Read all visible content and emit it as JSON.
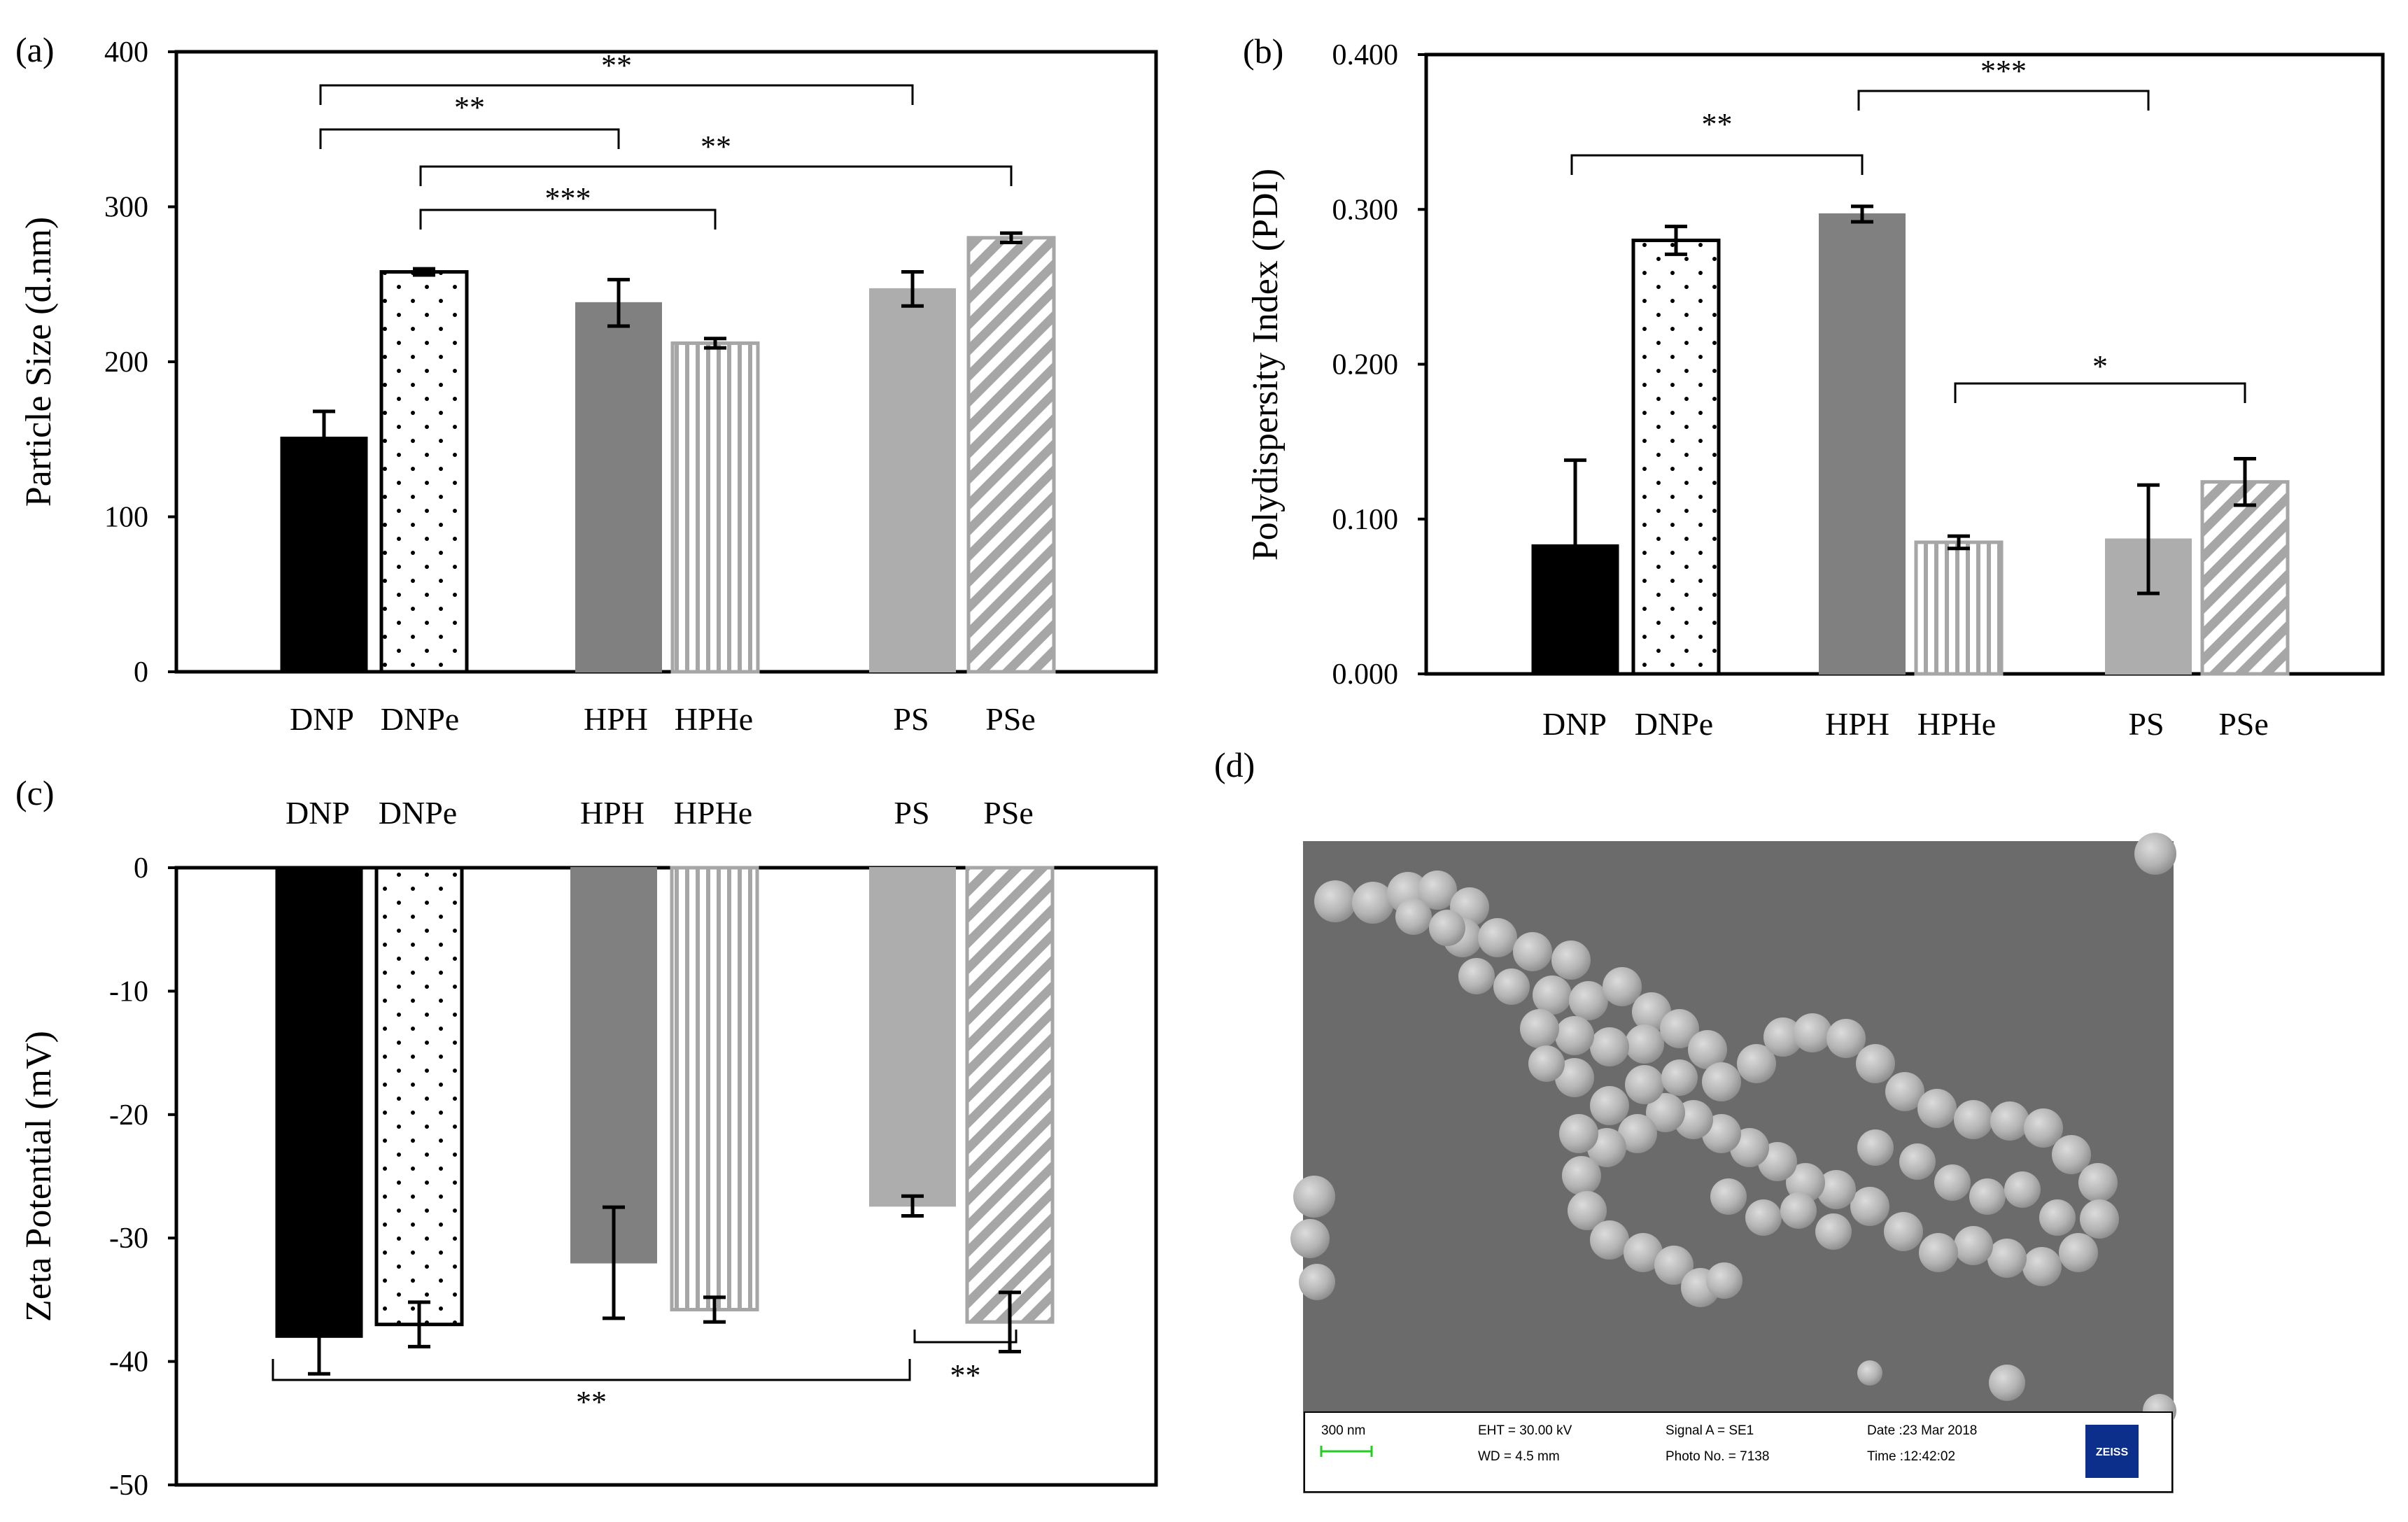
{
  "colors": {
    "black": "#000000",
    "dark_gray": "#808080",
    "light_gray": "#adadad",
    "hatch_gray": "#a6a6a6",
    "sem_bg": "#6b6b6b",
    "zeiss_blue": "#0b2f8a",
    "scale_green": "#22cc22"
  },
  "chart_data": [
    {
      "panel": "(a)",
      "type": "bar",
      "title": "",
      "xlabel": "",
      "ylabel": "Particle Size (d.nm)",
      "ylim": [
        0,
        400
      ],
      "yticks": [
        "0",
        "100",
        "200",
        "300",
        "400"
      ],
      "categories": [
        "DNP",
        "DNPe",
        "HPH",
        "HPHe",
        "PS",
        "PSe"
      ],
      "values": [
        151,
        258,
        238,
        212,
        247,
        280
      ],
      "errors": [
        17,
        2,
        15,
        3,
        11,
        3
      ],
      "patterns": [
        "solid-black",
        "dots",
        "solid-dark",
        "vstripes",
        "solid-light",
        "diag"
      ],
      "significance": [
        {
          "from": "DNP",
          "to": "PS",
          "label": "**"
        },
        {
          "from": "DNP",
          "to": "HPH",
          "label": "**"
        },
        {
          "from": "DNPe",
          "to": "PSe",
          "label": "**"
        },
        {
          "from": "DNPe",
          "to": "HPHe",
          "label": "***"
        }
      ]
    },
    {
      "panel": "(b)",
      "type": "bar",
      "title": "",
      "xlabel": "",
      "ylabel": "Polydispersity Index (PDI)",
      "ylim": [
        0,
        0.4
      ],
      "yticks": [
        "0.000",
        "0.100",
        "0.200",
        "0.300",
        "0.400"
      ],
      "categories": [
        "DNP",
        "DNPe",
        "HPH",
        "HPHe",
        "PS",
        "PSe"
      ],
      "values": [
        0.083,
        0.28,
        0.297,
        0.085,
        0.087,
        0.124
      ],
      "errors": [
        0.055,
        0.009,
        0.005,
        0.004,
        0.035,
        0.015
      ],
      "patterns": [
        "solid-black",
        "dots",
        "solid-dark",
        "vstripes",
        "solid-light",
        "diag"
      ],
      "significance": [
        {
          "from": "DNP",
          "to": "HPH",
          "label": "**"
        },
        {
          "from": "HPH",
          "to": "PS",
          "label": "***"
        },
        {
          "from": "HPHe",
          "to": "PSe",
          "label": "*"
        }
      ]
    },
    {
      "panel": "(c)",
      "type": "bar",
      "title": "",
      "xlabel": "",
      "ylabel": "Zeta Potential (mV)",
      "ylim": [
        -50,
        0
      ],
      "yticks": [
        "0",
        "-10",
        "-20",
        "-30",
        "-40",
        "-50"
      ],
      "categories": [
        "DNP",
        "DNPe",
        "HPH",
        "HPHe",
        "PS",
        "PSe"
      ],
      "values": [
        -38,
        -37,
        -32,
        -35.8,
        -27.4,
        -36.8
      ],
      "errors": [
        3,
        1.8,
        4.5,
        1,
        0.8,
        2.4
      ],
      "patterns": [
        "solid-black",
        "dots",
        "solid-dark",
        "vstripes",
        "solid-light",
        "diag"
      ],
      "significance": [
        {
          "from": "DNP",
          "to": "PS",
          "label": "**"
        },
        {
          "from": "PS",
          "to": "PSe",
          "label": "**"
        }
      ]
    }
  ],
  "sem": {
    "panel": "(d)",
    "scale_bar": "300 nm",
    "eht": "EHT = 30.00 kV",
    "wd": "WD =  4.5 mm",
    "signal": "Signal A = SE1",
    "photo": "Photo No. = 7138",
    "date": "Date :23 Mar 2018",
    "time": "Time :12:42:02",
    "logo": "ZEISS"
  }
}
